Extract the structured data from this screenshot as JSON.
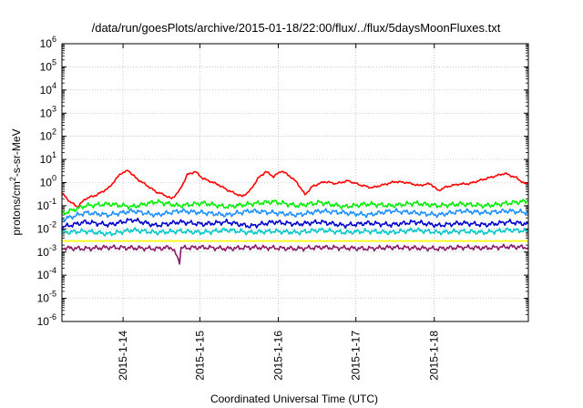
{
  "chart_data": {
    "type": "line",
    "title": "/data/run/goesPlots/archive/2015-01-18/22:00/flux/../flux/5daysMoonFluxes.txt",
    "xlabel": "Coordinated Universal Time (UTC)",
    "ylabel": "protons/cm²-s-sr-MeV",
    "ylabel_parts": {
      "before": "protons/cm",
      "sup": "2",
      "after": "-s-sr-MeV"
    },
    "y_scale": "log",
    "ylim": [
      1e-06,
      1000000.0
    ],
    "xlim_days": [
      0,
      5.95
    ],
    "grid": true,
    "x_ticks": [
      {
        "label": "2015-1-14",
        "day": 0.78
      },
      {
        "label": "2015-1-15",
        "day": 1.76
      },
      {
        "label": "2015-1-16",
        "day": 2.76
      },
      {
        "label": "2015-1-17",
        "day": 3.75
      },
      {
        "label": "2015-1-18",
        "day": 4.75
      }
    ],
    "y_ticks": [
      {
        "exp": -6,
        "base": "10",
        "sup": "-6"
      },
      {
        "exp": -5,
        "base": "10",
        "sup": "-5"
      },
      {
        "exp": -4,
        "base": "10",
        "sup": "-4"
      },
      {
        "exp": -3,
        "base": "10",
        "sup": "-3"
      },
      {
        "exp": -2,
        "base": "10",
        "sup": "-2"
      },
      {
        "exp": -1,
        "base": "10",
        "sup": "-1"
      },
      {
        "exp": 0,
        "base": "10",
        "sup": "0"
      },
      {
        "exp": 1,
        "base": "10",
        "sup": "1"
      },
      {
        "exp": 2,
        "base": "10",
        "sup": "2"
      },
      {
        "exp": 3,
        "base": "10",
        "sup": "3"
      },
      {
        "exp": 4,
        "base": "10",
        "sup": "4"
      },
      {
        "exp": 5,
        "base": "10",
        "sup": "5"
      },
      {
        "exp": 6,
        "base": "10",
        "sup": "6"
      }
    ],
    "series": [
      {
        "color": "#ff0000",
        "points": [
          [
            0,
            0.35
          ],
          [
            0.1,
            0.15
          ],
          [
            0.2,
            0.09
          ],
          [
            0.3,
            0.2
          ],
          [
            0.45,
            0.3
          ],
          [
            0.6,
            0.6
          ],
          [
            0.75,
            2.5
          ],
          [
            0.85,
            3.3
          ],
          [
            0.95,
            1.5
          ],
          [
            1.05,
            0.9
          ],
          [
            1.2,
            0.4
          ],
          [
            1.3,
            0.3
          ],
          [
            1.4,
            0.2
          ],
          [
            1.5,
            0.45
          ],
          [
            1.6,
            2.2
          ],
          [
            1.7,
            3.0
          ],
          [
            1.8,
            1.5
          ],
          [
            1.9,
            1.1
          ],
          [
            2.0,
            0.8
          ],
          [
            2.1,
            0.5
          ],
          [
            2.2,
            0.35
          ],
          [
            2.3,
            0.25
          ],
          [
            2.4,
            0.45
          ],
          [
            2.5,
            1.5
          ],
          [
            2.6,
            3.0
          ],
          [
            2.7,
            1.8
          ],
          [
            2.8,
            3.2
          ],
          [
            2.9,
            2.0
          ],
          [
            3.0,
            1.0
          ],
          [
            3.1,
            0.3
          ],
          [
            3.2,
            0.7
          ],
          [
            3.35,
            1.1
          ],
          [
            3.5,
            0.9
          ],
          [
            3.65,
            1.2
          ],
          [
            3.8,
            0.8
          ],
          [
            3.95,
            0.6
          ],
          [
            4.1,
            0.8
          ],
          [
            4.25,
            1.1
          ],
          [
            4.4,
            1.0
          ],
          [
            4.55,
            0.75
          ],
          [
            4.7,
            0.9
          ],
          [
            4.8,
            0.45
          ],
          [
            4.9,
            0.65
          ],
          [
            5.05,
            0.85
          ],
          [
            5.2,
            0.9
          ],
          [
            5.35,
            1.3
          ],
          [
            5.5,
            1.8
          ],
          [
            5.65,
            2.5
          ],
          [
            5.8,
            1.6
          ],
          [
            5.9,
            0.9
          ],
          [
            5.95,
            0.9
          ]
        ]
      },
      {
        "color": "#00ee00",
        "points": [
          [
            0,
            0.045
          ],
          [
            0.3,
            0.1
          ],
          [
            0.6,
            0.12
          ],
          [
            0.9,
            0.09
          ],
          [
            1.2,
            0.15
          ],
          [
            1.5,
            0.1
          ],
          [
            1.8,
            0.13
          ],
          [
            2.1,
            0.09
          ],
          [
            2.4,
            0.12
          ],
          [
            2.7,
            0.15
          ],
          [
            3.0,
            0.1
          ],
          [
            3.3,
            0.14
          ],
          [
            3.6,
            0.09
          ],
          [
            3.9,
            0.12
          ],
          [
            4.2,
            0.1
          ],
          [
            4.5,
            0.13
          ],
          [
            4.8,
            0.1
          ],
          [
            5.1,
            0.12
          ],
          [
            5.4,
            0.1
          ],
          [
            5.7,
            0.13
          ],
          [
            5.95,
            0.16
          ]
        ]
      },
      {
        "color": "#1e90ff",
        "points": [
          [
            0,
            0.025
          ],
          [
            0.3,
            0.05
          ],
          [
            0.6,
            0.04
          ],
          [
            0.9,
            0.06
          ],
          [
            1.2,
            0.04
          ],
          [
            1.5,
            0.06
          ],
          [
            1.8,
            0.05
          ],
          [
            2.1,
            0.04
          ],
          [
            2.4,
            0.06
          ],
          [
            2.7,
            0.05
          ],
          [
            3.0,
            0.04
          ],
          [
            3.3,
            0.06
          ],
          [
            3.6,
            0.05
          ],
          [
            3.9,
            0.04
          ],
          [
            4.2,
            0.06
          ],
          [
            4.5,
            0.05
          ],
          [
            4.8,
            0.04
          ],
          [
            5.1,
            0.06
          ],
          [
            5.4,
            0.05
          ],
          [
            5.7,
            0.06
          ],
          [
            5.95,
            0.05
          ]
        ]
      },
      {
        "color": "#0000cd",
        "points": [
          [
            0,
            0.012
          ],
          [
            0.3,
            0.02
          ],
          [
            0.6,
            0.015
          ],
          [
            0.9,
            0.025
          ],
          [
            1.2,
            0.014
          ],
          [
            1.5,
            0.02
          ],
          [
            1.8,
            0.016
          ],
          [
            2.1,
            0.02
          ],
          [
            2.4,
            0.013
          ],
          [
            2.7,
            0.02
          ],
          [
            3.0,
            0.016
          ],
          [
            3.3,
            0.02
          ],
          [
            3.6,
            0.014
          ],
          [
            3.9,
            0.018
          ],
          [
            4.2,
            0.015
          ],
          [
            4.5,
            0.02
          ],
          [
            4.8,
            0.014
          ],
          [
            5.1,
            0.018
          ],
          [
            5.4,
            0.015
          ],
          [
            5.7,
            0.02
          ],
          [
            5.95,
            0.016
          ]
        ]
      },
      {
        "color": "#00c8c8",
        "points": [
          [
            0,
            0.007
          ],
          [
            0.3,
            0.008
          ],
          [
            0.6,
            0.006
          ],
          [
            0.9,
            0.009
          ],
          [
            1.2,
            0.007
          ],
          [
            1.5,
            0.008
          ],
          [
            1.8,
            0.007
          ],
          [
            2.1,
            0.009
          ],
          [
            2.4,
            0.007
          ],
          [
            2.7,
            0.008
          ],
          [
            3.0,
            0.007
          ],
          [
            3.3,
            0.009
          ],
          [
            3.6,
            0.007
          ],
          [
            3.9,
            0.008
          ],
          [
            4.2,
            0.007
          ],
          [
            4.5,
            0.009
          ],
          [
            4.8,
            0.007
          ],
          [
            5.1,
            0.008
          ],
          [
            5.4,
            0.007
          ],
          [
            5.7,
            0.009
          ],
          [
            5.95,
            0.008
          ]
        ]
      },
      {
        "color": "#ffff00",
        "points": [
          [
            0,
            0.003
          ],
          [
            1.0,
            0.003
          ],
          [
            2.0,
            0.003
          ],
          [
            3.0,
            0.003
          ],
          [
            4.0,
            0.003
          ],
          [
            5.0,
            0.003
          ],
          [
            5.95,
            0.003
          ]
        ]
      },
      {
        "color": "#8b1a6b",
        "points": [
          [
            0,
            0.0015
          ],
          [
            0.3,
            0.0014
          ],
          [
            0.6,
            0.0016
          ],
          [
            0.9,
            0.0015
          ],
          [
            1.2,
            0.0014
          ],
          [
            1.4,
            0.0016
          ],
          [
            1.5,
            0.0004
          ],
          [
            1.52,
            0.0015
          ],
          [
            1.8,
            0.0016
          ],
          [
            2.1,
            0.0014
          ],
          [
            2.4,
            0.0016
          ],
          [
            2.7,
            0.0015
          ],
          [
            3.0,
            0.0014
          ],
          [
            3.3,
            0.0016
          ],
          [
            3.6,
            0.0015
          ],
          [
            3.9,
            0.0014
          ],
          [
            4.2,
            0.0016
          ],
          [
            4.5,
            0.0015
          ],
          [
            4.8,
            0.0014
          ],
          [
            5.1,
            0.0016
          ],
          [
            5.4,
            0.0015
          ],
          [
            5.7,
            0.0017
          ],
          [
            5.95,
            0.0016
          ]
        ]
      }
    ]
  }
}
